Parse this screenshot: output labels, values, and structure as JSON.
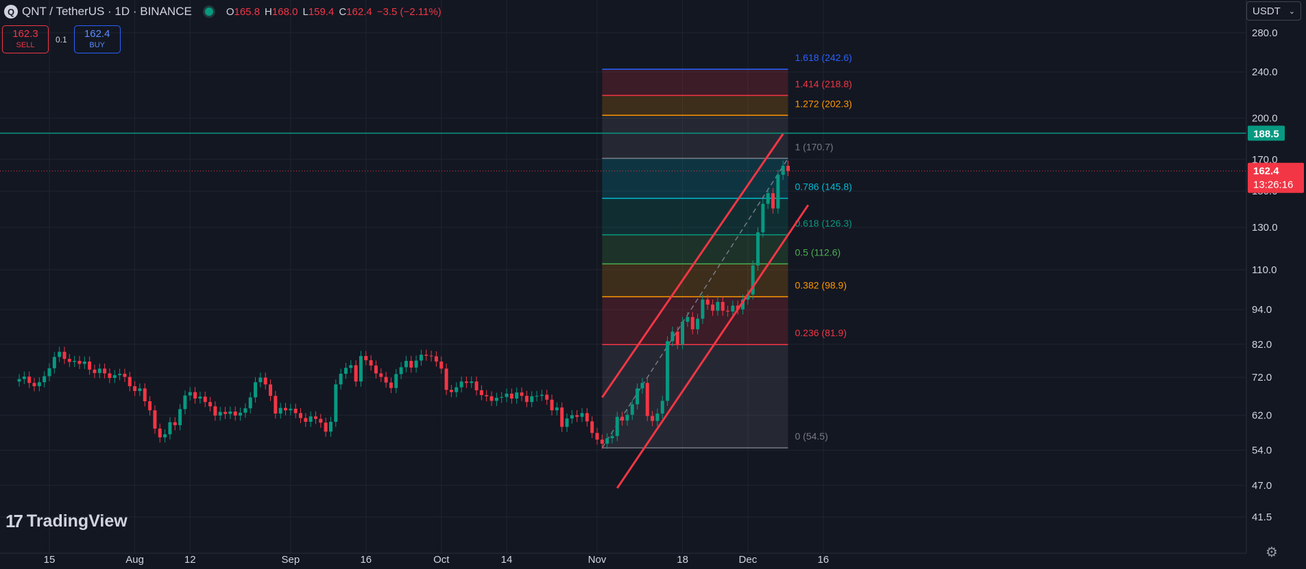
{
  "header": {
    "coin_icon_letter": "Q",
    "title": "QNT / TetherUS · 1D · BINANCE",
    "status_color": "#089981",
    "ohlc": [
      {
        "label": "O",
        "value": "165.8"
      },
      {
        "label": "H",
        "value": "168.0"
      },
      {
        "label": "L",
        "value": "159.4"
      },
      {
        "label": "C",
        "value": "162.4"
      },
      {
        "label": "",
        "value": "−3.5 (−2.11%)"
      }
    ]
  },
  "trade": {
    "sell_price": "162.3",
    "sell_label": "SELL",
    "spread": "0.1",
    "buy_price": "162.4",
    "buy_label": "BUY"
  },
  "currency_selector": {
    "value": "USDT",
    "icon": "chevron-down-icon"
  },
  "logo": {
    "text": "TradingView",
    "icon": "tradingview-logo-icon"
  },
  "settings_icon": "gear-icon",
  "chart_data": {
    "type": "candlestick",
    "scale": "log",
    "ylim": [
      37,
      300
    ],
    "price_ticks": [
      280,
      240,
      200,
      170,
      150,
      130,
      110,
      94,
      82,
      72,
      62,
      54,
      47,
      41.5
    ],
    "price_tick_labels": [
      "280.0",
      "240.0",
      "200.0",
      "170.0",
      "150.0",
      "130.0",
      "110.0",
      "94.0",
      "82.0",
      "72.0",
      "62.0",
      "54.0",
      "47.0",
      "41.5"
    ],
    "x_ticks": [
      {
        "date": "2024-07-15",
        "label": "15"
      },
      {
        "date": "2024-08-01",
        "label": "Aug"
      },
      {
        "date": "2024-08-12",
        "label": "12"
      },
      {
        "date": "2024-09-01",
        "label": "Sep"
      },
      {
        "date": "2024-09-16",
        "label": "16"
      },
      {
        "date": "2024-10-01",
        "label": "Oct"
      },
      {
        "date": "2024-10-14",
        "label": "14"
      },
      {
        "date": "2024-11-01",
        "label": "Nov"
      },
      {
        "date": "2024-11-18",
        "label": "18"
      },
      {
        "date": "2024-12-01",
        "label": "Dec"
      },
      {
        "date": "2024-12-16",
        "label": "16"
      }
    ],
    "candle_colors": {
      "up": "#089981",
      "down": "#f23645"
    },
    "closes": [
      [
        "2024-07-09",
        71.5
      ],
      [
        "2024-07-10",
        72.2
      ],
      [
        "2024-07-11",
        70.4
      ],
      [
        "2024-07-12",
        69.5
      ],
      [
        "2024-07-13",
        70.6
      ],
      [
        "2024-07-14",
        72.3
      ],
      [
        "2024-07-15",
        74.6
      ],
      [
        "2024-07-16",
        78.0
      ],
      [
        "2024-07-17",
        79.6
      ],
      [
        "2024-07-18",
        77.4
      ],
      [
        "2024-07-19",
        76.5
      ],
      [
        "2024-07-20",
        76.8
      ],
      [
        "2024-07-21",
        75.9
      ],
      [
        "2024-07-22",
        76.6
      ],
      [
        "2024-07-23",
        74.2
      ],
      [
        "2024-07-24",
        73.2
      ],
      [
        "2024-07-25",
        74.5
      ],
      [
        "2024-07-26",
        73.1
      ],
      [
        "2024-07-27",
        71.8
      ],
      [
        "2024-07-28",
        72.6
      ],
      [
        "2024-07-29",
        73.0
      ],
      [
        "2024-07-30",
        72.1
      ],
      [
        "2024-07-31",
        69.5
      ],
      [
        "2024-08-01",
        68.2
      ],
      [
        "2024-08-02",
        68.9
      ],
      [
        "2024-08-03",
        65.5
      ],
      [
        "2024-08-04",
        63.2
      ],
      [
        "2024-08-05",
        58.8
      ],
      [
        "2024-08-06",
        56.8
      ],
      [
        "2024-08-07",
        57.5
      ],
      [
        "2024-08-08",
        60.3
      ],
      [
        "2024-08-09",
        59.6
      ],
      [
        "2024-08-10",
        63.5
      ],
      [
        "2024-08-11",
        67.0
      ],
      [
        "2024-08-12",
        67.9
      ],
      [
        "2024-08-13",
        66.2
      ],
      [
        "2024-08-14",
        66.7
      ],
      [
        "2024-08-15",
        65.3
      ],
      [
        "2024-08-16",
        64.2
      ],
      [
        "2024-08-17",
        61.9
      ],
      [
        "2024-08-18",
        62.8
      ],
      [
        "2024-08-19",
        62.3
      ],
      [
        "2024-08-20",
        62.9
      ],
      [
        "2024-08-21",
        61.9
      ],
      [
        "2024-08-22",
        62.6
      ],
      [
        "2024-08-23",
        63.7
      ],
      [
        "2024-08-24",
        66.5
      ],
      [
        "2024-08-25",
        70.6
      ],
      [
        "2024-08-26",
        71.9
      ],
      [
        "2024-08-27",
        70.0
      ],
      [
        "2024-08-28",
        66.9
      ],
      [
        "2024-08-29",
        62.4
      ],
      [
        "2024-08-30",
        63.8
      ],
      [
        "2024-08-31",
        63.2
      ],
      [
        "2024-09-01",
        63.6
      ],
      [
        "2024-09-02",
        62.5
      ],
      [
        "2024-09-03",
        61.3
      ],
      [
        "2024-09-04",
        60.4
      ],
      [
        "2024-09-05",
        61.7
      ],
      [
        "2024-09-06",
        61.1
      ],
      [
        "2024-09-07",
        60.2
      ],
      [
        "2024-09-08",
        58.1
      ],
      [
        "2024-09-09",
        60.4
      ],
      [
        "2024-09-10",
        70.0
      ],
      [
        "2024-09-11",
        73.0
      ],
      [
        "2024-09-12",
        74.7
      ],
      [
        "2024-09-13",
        75.5
      ],
      [
        "2024-09-14",
        70.8
      ],
      [
        "2024-09-15",
        78.3
      ],
      [
        "2024-09-16",
        77.0
      ],
      [
        "2024-09-17",
        75.4
      ],
      [
        "2024-09-18",
        73.1
      ],
      [
        "2024-09-19",
        72.1
      ],
      [
        "2024-09-20",
        70.5
      ],
      [
        "2024-09-21",
        69.0
      ],
      [
        "2024-09-22",
        72.9
      ],
      [
        "2024-09-23",
        74.9
      ],
      [
        "2024-09-24",
        76.8
      ],
      [
        "2024-09-25",
        74.8
      ],
      [
        "2024-09-26",
        76.9
      ],
      [
        "2024-09-27",
        78.7
      ],
      [
        "2024-09-28",
        78.4
      ],
      [
        "2024-09-29",
        78.2
      ],
      [
        "2024-09-30",
        76.6
      ],
      [
        "2024-10-01",
        74.5
      ],
      [
        "2024-10-02",
        68.5
      ],
      [
        "2024-10-03",
        67.9
      ],
      [
        "2024-10-04",
        69.2
      ],
      [
        "2024-10-05",
        70.8
      ],
      [
        "2024-10-06",
        70.4
      ],
      [
        "2024-10-07",
        70.8
      ],
      [
        "2024-10-08",
        68.4
      ],
      [
        "2024-10-09",
        67.1
      ],
      [
        "2024-10-10",
        66.8
      ],
      [
        "2024-10-11",
        65.6
      ],
      [
        "2024-10-12",
        66.4
      ],
      [
        "2024-10-13",
        66.6
      ],
      [
        "2024-10-14",
        67.5
      ],
      [
        "2024-10-15",
        66.2
      ],
      [
        "2024-10-16",
        67.8
      ],
      [
        "2024-10-17",
        66.9
      ],
      [
        "2024-10-18",
        65.3
      ],
      [
        "2024-10-19",
        66.8
      ],
      [
        "2024-10-20",
        66.9
      ],
      [
        "2024-10-21",
        67.2
      ],
      [
        "2024-10-22",
        65.9
      ],
      [
        "2024-10-23",
        63.2
      ],
      [
        "2024-10-24",
        63.9
      ],
      [
        "2024-10-25",
        59.2
      ],
      [
        "2024-10-26",
        61.2
      ],
      [
        "2024-10-27",
        62.0
      ],
      [
        "2024-10-28",
        61.6
      ],
      [
        "2024-10-29",
        62.5
      ],
      [
        "2024-10-30",
        60.5
      ],
      [
        "2024-10-31",
        57.8
      ],
      [
        "2024-11-01",
        56.3
      ],
      [
        "2024-11-02",
        55.4
      ],
      [
        "2024-11-03",
        56.6
      ],
      [
        "2024-11-04",
        57.1
      ],
      [
        "2024-11-05",
        61.6
      ],
      [
        "2024-11-06",
        60.7
      ],
      [
        "2024-11-07",
        62.1
      ],
      [
        "2024-11-08",
        64.7
      ],
      [
        "2024-11-09",
        68.9
      ],
      [
        "2024-11-10",
        70.4
      ],
      [
        "2024-11-11",
        61.8
      ],
      [
        "2024-11-12",
        60.6
      ],
      [
        "2024-11-13",
        62.4
      ],
      [
        "2024-11-14",
        65.6
      ],
      [
        "2024-11-15",
        83.0
      ],
      [
        "2024-11-16",
        86.2
      ],
      [
        "2024-11-17",
        82.1
      ],
      [
        "2024-11-18",
        89.6
      ],
      [
        "2024-11-19",
        91.3
      ],
      [
        "2024-11-20",
        87.0
      ],
      [
        "2024-11-21",
        90.7
      ],
      [
        "2024-11-22",
        97.8
      ],
      [
        "2024-11-23",
        95.9
      ],
      [
        "2024-11-24",
        93.6
      ],
      [
        "2024-11-25",
        96.9
      ],
      [
        "2024-11-26",
        93.6
      ],
      [
        "2024-11-27",
        93.3
      ],
      [
        "2024-11-28",
        95.5
      ],
      [
        "2024-11-29",
        94.1
      ],
      [
        "2024-11-30",
        97.8
      ],
      [
        "2024-12-01",
        99.8
      ],
      [
        "2024-12-02",
        111.9
      ],
      [
        "2024-12-03",
        127.5
      ],
      [
        "2024-12-04",
        142.7
      ],
      [
        "2024-12-05",
        148.8
      ],
      [
        "2024-12-06",
        140.1
      ],
      [
        "2024-12-07",
        160.0
      ],
      [
        "2024-12-08",
        165.8
      ],
      [
        "2024-12-09",
        162.4
      ]
    ],
    "fibonacci": {
      "from": {
        "date": "2024-11-02",
        "price": 54.5
      },
      "to": {
        "date": "2024-12-09",
        "price": 170.7
      },
      "levels": [
        {
          "ratio": "0",
          "value": 54.5,
          "label": "0 (54.5)",
          "color": "#787b86"
        },
        {
          "ratio": "0.236",
          "value": 81.9,
          "label": "0.236 (81.9)",
          "color": "#f23645"
        },
        {
          "ratio": "0.382",
          "value": 98.9,
          "label": "0.382 (98.9)",
          "color": "#ff9800"
        },
        {
          "ratio": "0.5",
          "value": 112.6,
          "label": "0.5 (112.6)",
          "color": "#4caf50"
        },
        {
          "ratio": "0.618",
          "value": 126.3,
          "label": "0.618 (126.3)",
          "color": "#089981"
        },
        {
          "ratio": "0.786",
          "value": 145.8,
          "label": "0.786 (145.8)",
          "color": "#00bcd4"
        },
        {
          "ratio": "1",
          "value": 170.7,
          "label": "1 (170.7)",
          "color": "#787b86"
        },
        {
          "ratio": "1.272",
          "value": 202.3,
          "label": "1.272 (202.3)",
          "color": "#ff9800"
        },
        {
          "ratio": "1.414",
          "value": 218.8,
          "label": "1.414 (218.8)",
          "color": "#f23645"
        },
        {
          "ratio": "1.618",
          "value": 242.6,
          "label": "1.618 (242.6)",
          "color": "#2962ff"
        }
      ]
    },
    "channel": {
      "color": "#f23645",
      "upper": [
        {
          "date": "2024-11-02",
          "price": 66.5
        },
        {
          "date": "2024-12-08",
          "price": 188
        }
      ],
      "lower": [
        {
          "date": "2024-11-05",
          "price": 46.5
        },
        {
          "date": "2024-12-13",
          "price": 142
        }
      ]
    },
    "horizontal_line": {
      "price": 188.5,
      "label": "188.5",
      "color": "#089981"
    },
    "last_price": {
      "price": 162.4,
      "label": "162.4",
      "countdown": "13:26:16",
      "color": "#f23645"
    }
  }
}
